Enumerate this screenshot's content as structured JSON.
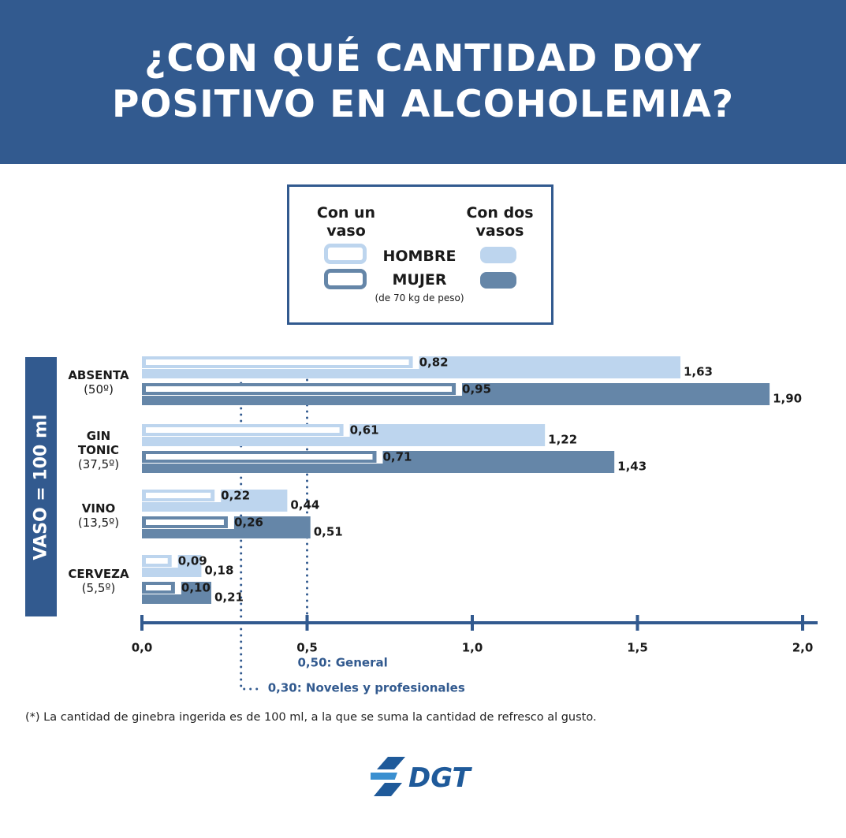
{
  "header": {
    "title_line1": "¿CON QUÉ CANTIDAD DOY",
    "title_line2": "POSITIVO EN ALCOHOLEMIA?"
  },
  "legend": {
    "one_glass": "Con un vaso",
    "two_glasses": "Con dos vasos",
    "hombre": "HOMBRE",
    "mujer": "MUJER",
    "note": "(de 70 kg de peso)"
  },
  "side_label": "VASO = 100 ml",
  "colors": {
    "brand": "#325a8f",
    "hombre": "#bdd5ee",
    "mujer": "#6586a8"
  },
  "chart_data": {
    "type": "bar",
    "orientation": "horizontal",
    "categories": [
      {
        "name": "ABSENTA",
        "name2": "",
        "degree": "(50º)"
      },
      {
        "name": "GIN",
        "name2": "TONIC",
        "degree": "(37,5º)"
      },
      {
        "name": "VINO",
        "name2": "",
        "degree": "(13,5º)"
      },
      {
        "name": "CERVEZA",
        "name2": "",
        "degree": "(5,5º)"
      }
    ],
    "series": [
      {
        "name": "HOMBRE - Con un vaso",
        "values": [
          0.82,
          0.61,
          0.22,
          0.09
        ],
        "labels": [
          "0,82",
          "0,61",
          "0,22",
          "0,09"
        ]
      },
      {
        "name": "HOMBRE - Con dos vasos",
        "values": [
          1.63,
          1.22,
          0.44,
          0.18
        ],
        "labels": [
          "1,63",
          "1,22",
          "0,44",
          "0,18"
        ]
      },
      {
        "name": "MUJER - Con un vaso",
        "values": [
          0.95,
          0.71,
          0.26,
          0.1
        ],
        "labels": [
          "0,95",
          "0,71",
          "0,26",
          "0,10"
        ]
      },
      {
        "name": "MUJER - Con dos vasos",
        "values": [
          1.9,
          1.43,
          0.51,
          0.21
        ],
        "labels": [
          "1,90",
          "1,43",
          "0,51",
          "0,21"
        ]
      }
    ],
    "xlim": [
      0,
      2.0
    ],
    "xticks": [
      0,
      0.5,
      1.0,
      1.5,
      2.0
    ],
    "xtick_labels": [
      "0,0",
      "0,5",
      "1,0",
      "1,5",
      "2,0"
    ],
    "thresholds": [
      {
        "value": 0.5,
        "label": "0,50: General"
      },
      {
        "value": 0.3,
        "label": "0,30: Noveles y profesionales"
      }
    ],
    "grid": false
  },
  "footnote": "(*) La cantidad de ginebra ingerida es de 100 ml, a la que se suma la cantidad de refresco al gusto.",
  "logo_text": "DGT"
}
